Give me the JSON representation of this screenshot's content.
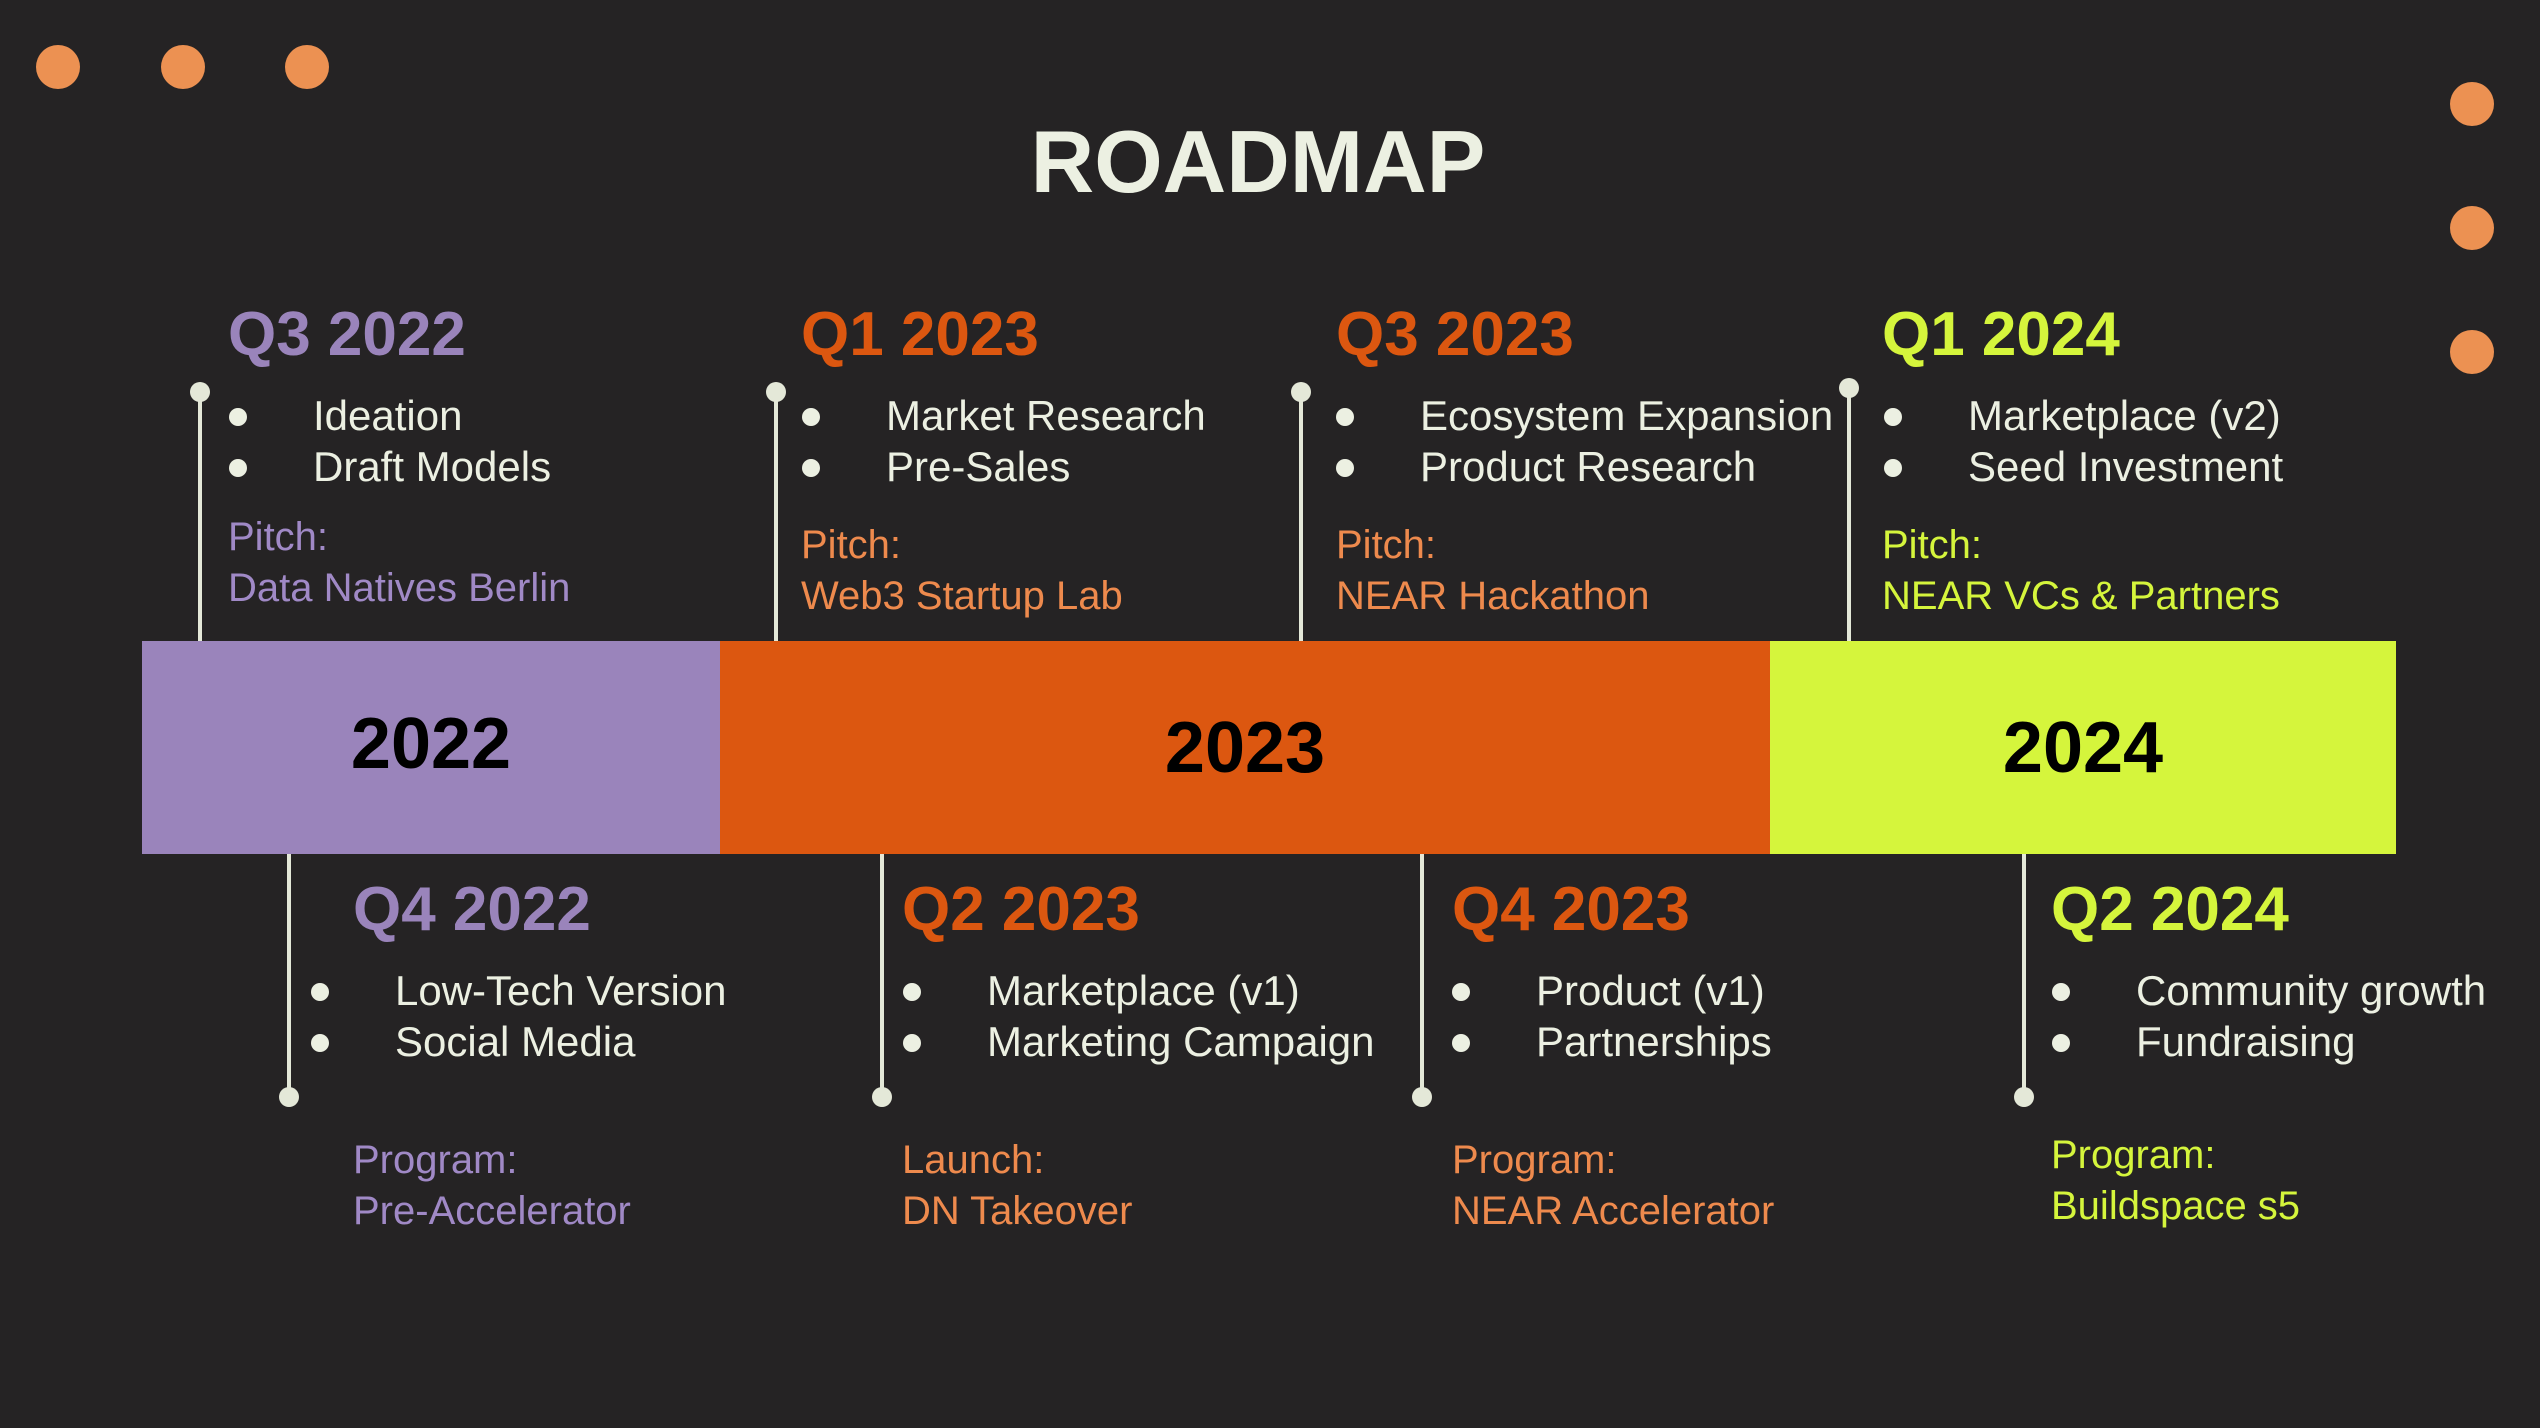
{
  "title": "ROADMAP",
  "colors": {
    "background": "#252324",
    "dots": "#ec9152",
    "purple": "#9a84bb",
    "orange": "#dc5710",
    "lime": "#d5f53c",
    "text": "#ecf0e2",
    "event_purple": "#a089c6",
    "event_orange": "#ee8a4d",
    "event_lime": "#d5f53c"
  },
  "years": [
    {
      "label": "2022"
    },
    {
      "label": "2023"
    },
    {
      "label": "2024"
    }
  ],
  "milestones_top": [
    {
      "quarter": "Q3 2022",
      "items": [
        "Ideation",
        "Draft Models"
      ],
      "event_type": "Pitch:",
      "event_name": "Data Natives Berlin"
    },
    {
      "quarter": "Q1 2023",
      "items": [
        "Market Research",
        "Pre-Sales"
      ],
      "event_type": "Pitch:",
      "event_name": "Web3 Startup Lab"
    },
    {
      "quarter": "Q3 2023",
      "items": [
        "Ecosystem Expansion",
        "Product Research"
      ],
      "event_type": "Pitch:",
      "event_name": "NEAR Hackathon"
    },
    {
      "quarter": "Q1 2024",
      "items": [
        "Marketplace (v2)",
        "Seed Investment"
      ],
      "event_type": "Pitch:",
      "event_name": "NEAR VCs & Partners"
    }
  ],
  "milestones_bottom": [
    {
      "quarter": "Q4 2022",
      "items": [
        "Low-Tech Version",
        "Social Media"
      ],
      "event_type": "Program:",
      "event_name": "Pre-Accelerator"
    },
    {
      "quarter": "Q2 2023",
      "items": [
        "Marketplace (v1)",
        "Marketing Campaign"
      ],
      "event_type": "Launch:",
      "event_name": "DN Takeover"
    },
    {
      "quarter": "Q4 2023",
      "items": [
        "Product (v1)",
        "Partnerships"
      ],
      "event_type": "Program:",
      "event_name": "NEAR Accelerator"
    },
    {
      "quarter": "Q2 2024",
      "items": [
        "Community growth",
        "Fundraising"
      ],
      "event_type": "Program:",
      "event_name": "Buildspace s5"
    }
  ]
}
